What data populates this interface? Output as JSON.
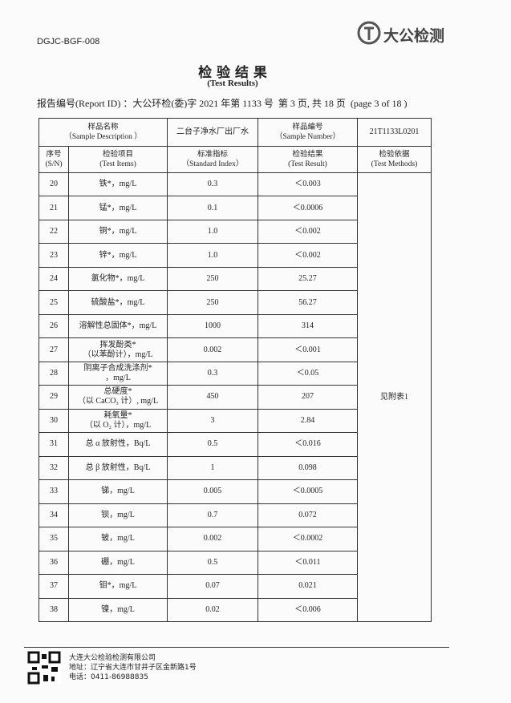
{
  "header": {
    "code": "DGJC-BGF-008",
    "logo": "大公检测",
    "title": "检 验 结 果",
    "subtitle": "(Test Results)",
    "report_id": "报告编号(Report ID) ：大公环检(委)字 2021 年第 1133 号  第 3 页, 共 18 页  (page 3 of 18 )"
  },
  "table": {
    "sample_label": [
      "样品名称",
      "（Sample Description ）"
    ],
    "sample_value": "二台子净水厂出厂水",
    "number_label": [
      "样品编号",
      "（Sample   Number）"
    ],
    "number_value": "21T1133L0201",
    "columns": [
      [
        "序号",
        "(S/N)"
      ],
      [
        "检验项目",
        "(Test Items)"
      ],
      [
        "标准指标",
        "（Standard Index）"
      ],
      [
        "检验结果",
        "(Test Result)"
      ],
      [
        "检验依据",
        "(Test Methods)"
      ]
    ],
    "method": "见附表1",
    "rows": [
      {
        "sn": "20",
        "item": [
          "铁*，mg/L"
        ],
        "standard": "0.3",
        "result": "＜0.003"
      },
      {
        "sn": "21",
        "item": [
          "锰*，mg/L"
        ],
        "standard": "0.1",
        "result": "＜0.0006"
      },
      {
        "sn": "22",
        "item": [
          "铜*，mg/L"
        ],
        "standard": "1.0",
        "result": "＜0.002"
      },
      {
        "sn": "23",
        "item": [
          "锌*，mg/L"
        ],
        "standard": "1.0",
        "result": "＜0.002"
      },
      {
        "sn": "24",
        "item": [
          "氯化物*，mg/L"
        ],
        "standard": "250",
        "result": "25.27"
      },
      {
        "sn": "25",
        "item": [
          "硫酸盐*，mg/L"
        ],
        "standard": "250",
        "result": "56.27"
      },
      {
        "sn": "26",
        "item": [
          "溶解性总固体*，mg/L"
        ],
        "standard": "1000",
        "result": "314"
      },
      {
        "sn": "27",
        "item": [
          "挥发酚类*",
          "（以苯酚计），mg/L"
        ],
        "standard": "0.002",
        "result": "＜0.001"
      },
      {
        "sn": "28",
        "item": [
          "阴离子合成洗涤剂*",
          "，mg/L"
        ],
        "standard": "0.3",
        "result": "＜0.05"
      },
      {
        "sn": "29",
        "item": [
          "总硬度*",
          "（以 CaCO₃ 计）, mg/L"
        ],
        "standard": "450",
        "result": "207"
      },
      {
        "sn": "30",
        "item": [
          "耗氧量*",
          "（以 O₂ 计），mg/L"
        ],
        "standard": "3",
        "result": "2.84"
      },
      {
        "sn": "31",
        "item": [
          "总 α 放射性，Bq/L"
        ],
        "standard": "0.5",
        "result": "＜0.016"
      },
      {
        "sn": "32",
        "item": [
          "总 β 放射性，Bq/L"
        ],
        "standard": "1",
        "result": "0.098"
      },
      {
        "sn": "33",
        "item": [
          "锑，mg/L"
        ],
        "standard": "0.005",
        "result": "＜0.0005"
      },
      {
        "sn": "34",
        "item": [
          "钡，mg/L"
        ],
        "standard": "0.7",
        "result": "0.072"
      },
      {
        "sn": "35",
        "item": [
          "铍，mg/L"
        ],
        "standard": "0.002",
        "result": "＜0.0002"
      },
      {
        "sn": "36",
        "item": [
          "硼，mg/L"
        ],
        "standard": "0.5",
        "result": "＜0.011"
      },
      {
        "sn": "37",
        "item": [
          "钼*，mg/L"
        ],
        "standard": "0.07",
        "result": "0.021"
      },
      {
        "sn": "38",
        "item": [
          "镍，mg/L"
        ],
        "standard": "0.02",
        "result": "＜0.006"
      }
    ]
  },
  "footer": {
    "company": "大连大公检验检测有限公司",
    "address": "地址：辽宁省大连市甘井子区金新路1号",
    "phone": "电话：0411-86988835"
  }
}
